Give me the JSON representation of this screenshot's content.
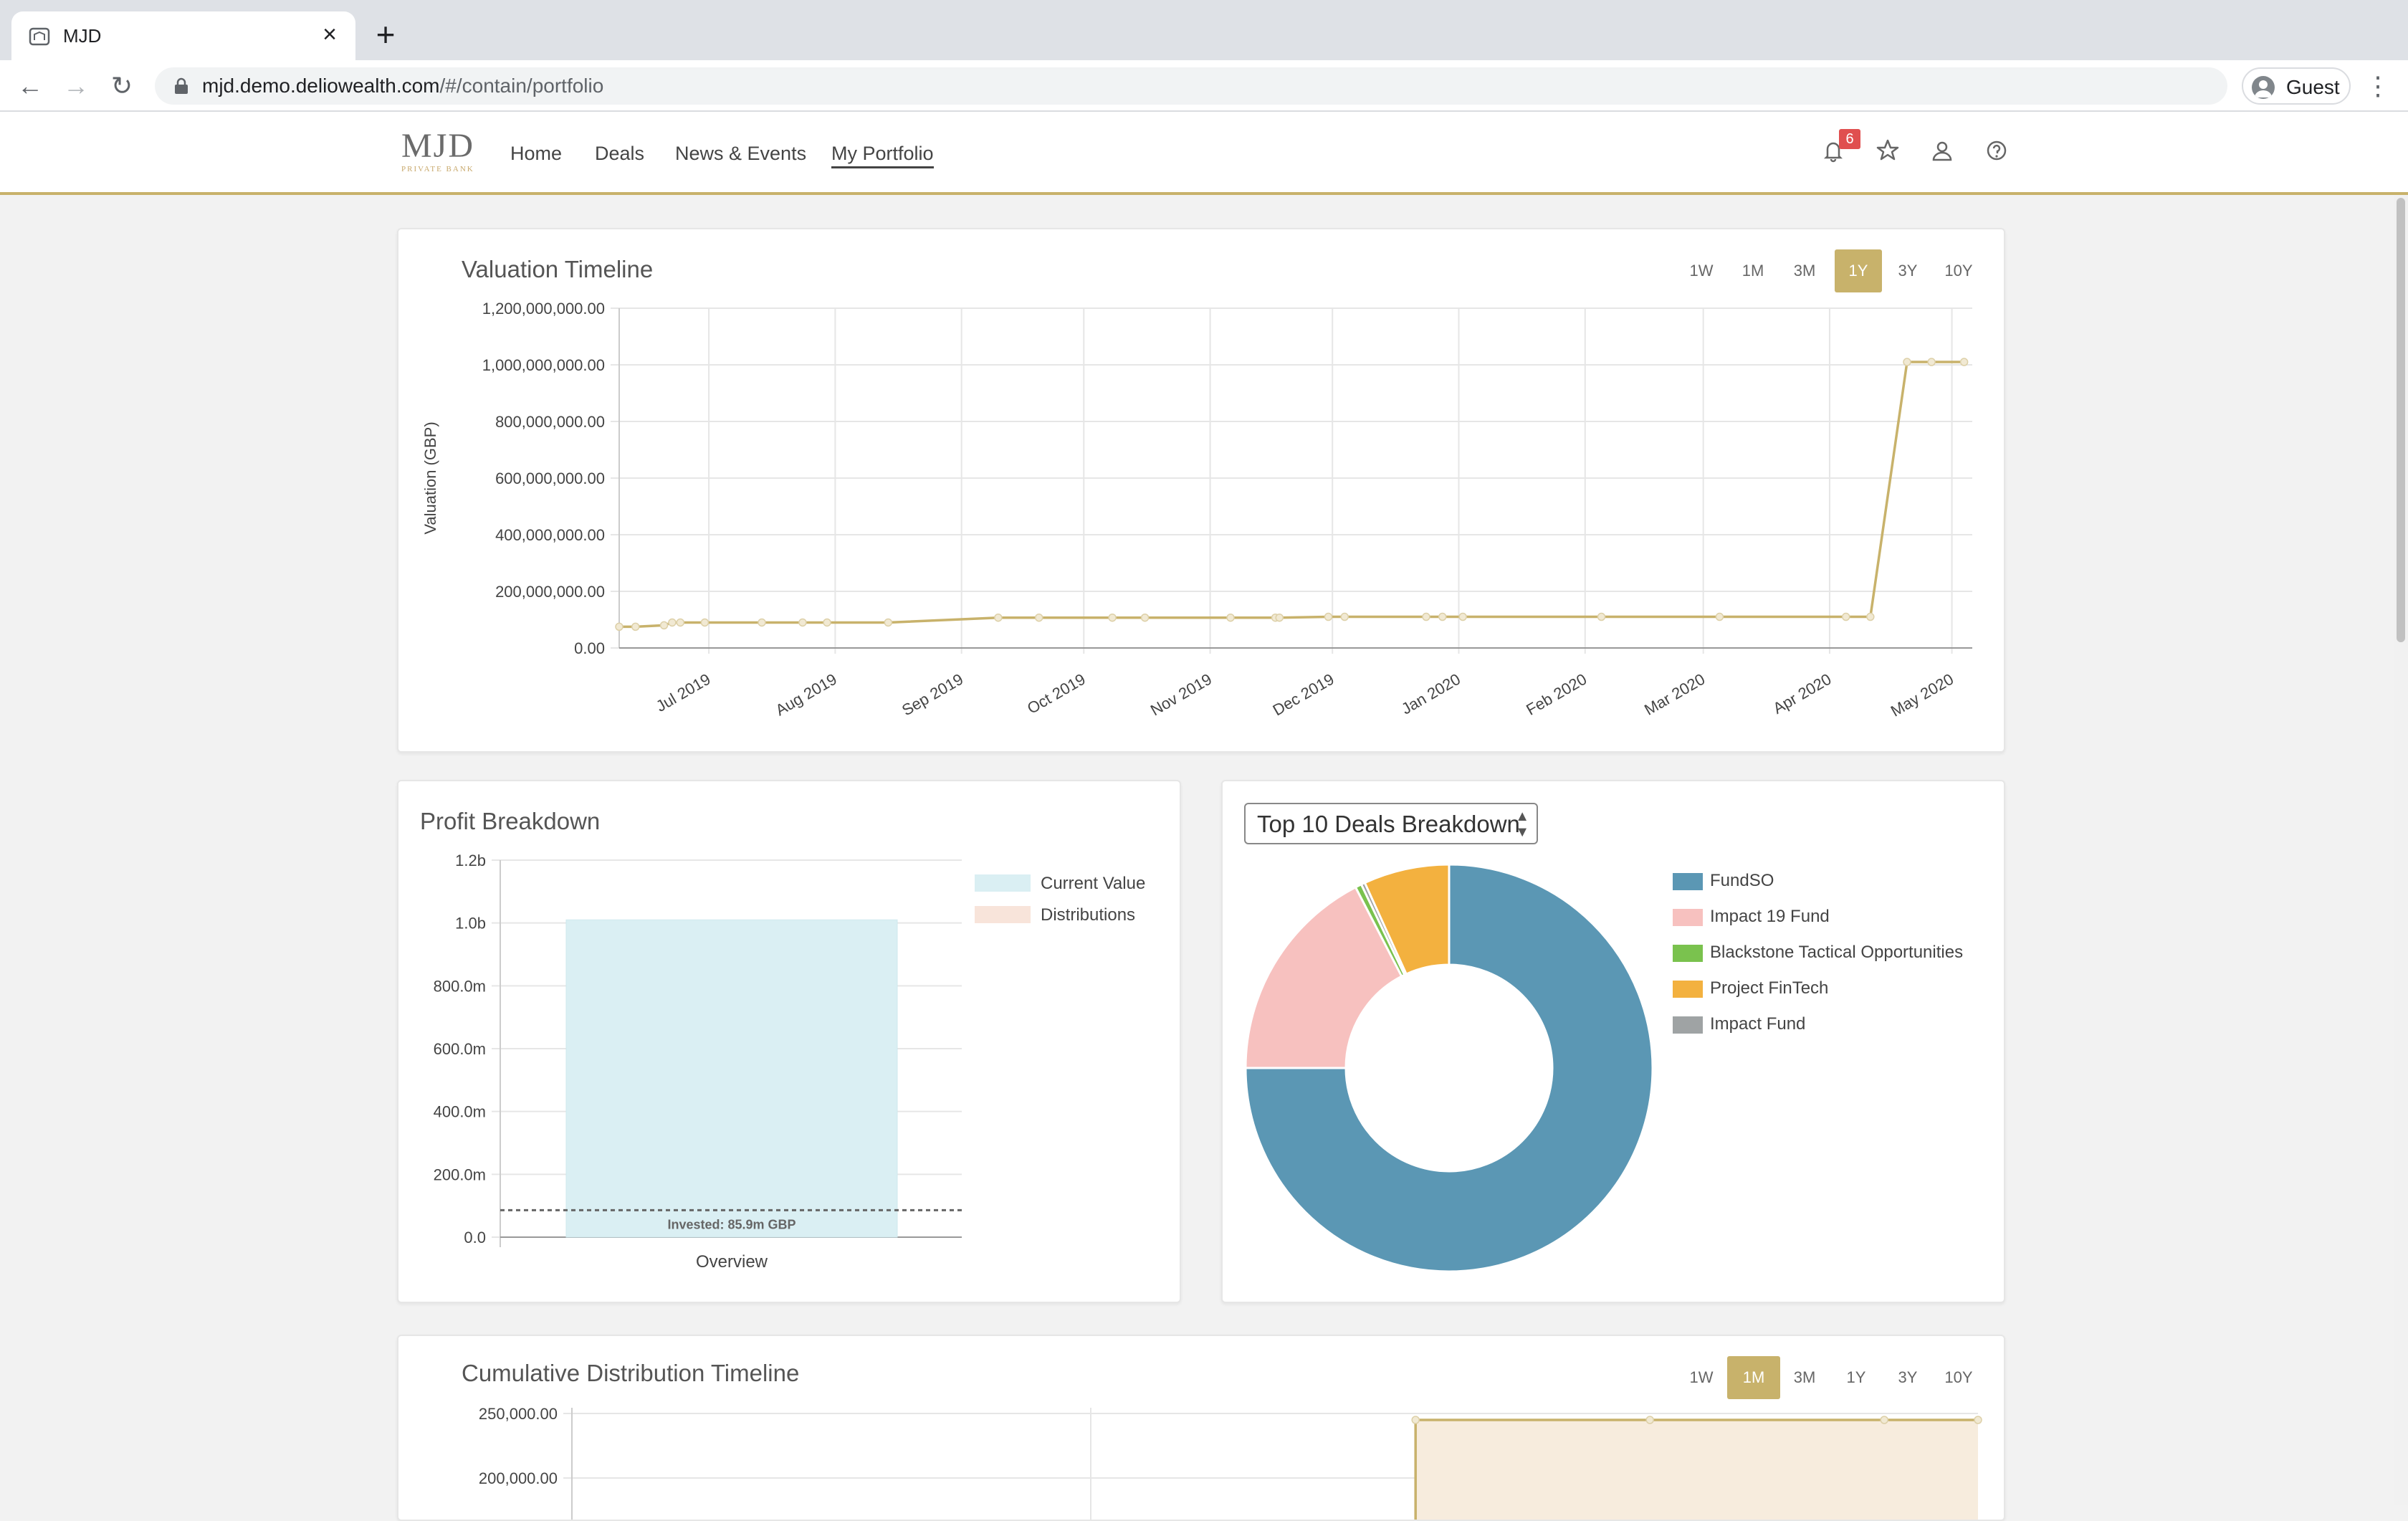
{
  "browser": {
    "tab_title": "MJD",
    "url_host": "mjd.demo.deliowealth.com",
    "url_path": "/#/contain/portfolio",
    "profile_label": "Guest"
  },
  "header": {
    "logo_main": "MJD",
    "logo_sub": "PRIVATE BANK",
    "nav": [
      "Home",
      "Deals",
      "News & Events",
      "My Portfolio"
    ],
    "active_nav": "My Portfolio",
    "notification_count": "6",
    "colors": {
      "accent": "#c8b26b",
      "badge": "#e04f4f"
    }
  },
  "valuation": {
    "title": "Valuation Timeline",
    "ranges": [
      "1W",
      "1M",
      "3M",
      "1Y",
      "3Y",
      "10Y"
    ],
    "active_range": "1Y"
  },
  "profit": {
    "title": "Profit Breakdown"
  },
  "deals": {
    "select_label": "Top 10 Deals Breakdown"
  },
  "cumulative": {
    "title": "Cumulative Distribution Timeline",
    "ranges": [
      "1W",
      "1M",
      "3M",
      "1Y",
      "3Y",
      "10Y"
    ],
    "active_range": "1M"
  },
  "chart_data": [
    {
      "type": "line",
      "title": "Valuation Timeline",
      "ylabel": "Valuation (GBP)",
      "ylim": [
        0,
        1200000000
      ],
      "y_ticks": [
        "0.00",
        "200,000,000.00",
        "400,000,000.00",
        "600,000,000.00",
        "800,000,000.00",
        "1,000,000,000.00",
        "1,200,000,000.00"
      ],
      "x_ticks": [
        "Jul 2019",
        "Aug 2019",
        "Sep 2019",
        "Oct 2019",
        "Nov 2019",
        "Dec 2019",
        "Jan 2020",
        "Feb 2020",
        "Mar 2020",
        "Apr 2020",
        "May 2020"
      ],
      "grid": true,
      "color": "#c8b26b",
      "x": [
        "2019-06-09",
        "2019-06-13",
        "2019-06-20",
        "2019-06-22",
        "2019-06-24",
        "2019-06-30",
        "2019-07-14",
        "2019-07-24",
        "2019-07-30",
        "2019-08-14",
        "2019-09-10",
        "2019-09-20",
        "2019-10-08",
        "2019-10-16",
        "2019-11-06",
        "2019-11-17",
        "2019-11-18",
        "2019-11-30",
        "2019-12-04",
        "2019-12-24",
        "2019-12-28",
        "2020-01-02",
        "2020-02-05",
        "2020-03-05",
        "2020-04-05",
        "2020-04-11",
        "2020-04-20",
        "2020-04-26",
        "2020-05-04"
      ],
      "y": [
        75000000,
        75000000,
        80000000,
        90000000,
        90000000,
        90000000,
        90000000,
        90000000,
        90000000,
        90000000,
        107000000,
        107000000,
        107000000,
        107000000,
        107000000,
        107000000,
        107000000,
        110000000,
        110000000,
        110000000,
        110000000,
        110000000,
        110000000,
        110000000,
        110000000,
        110000000,
        1010000000,
        1010000000,
        1010000000
      ]
    },
    {
      "type": "bar",
      "title": "Profit Breakdown",
      "categories": [
        "Overview"
      ],
      "series": [
        {
          "name": "Current Value",
          "values": [
            1010000000
          ],
          "color": "#daeff3"
        },
        {
          "name": "Distributions",
          "values": [
            0
          ],
          "color": "#f8e4da"
        }
      ],
      "y_ticks": [
        "0.0",
        "200.0m",
        "400.0m",
        "600.0m",
        "800.0m",
        "1.0b",
        "1.2b"
      ],
      "ylim": [
        0,
        1200000000
      ],
      "reference_line": {
        "value": 85900000,
        "label": "Invested: 85.9m GBP"
      },
      "legend": "top-right"
    },
    {
      "type": "pie",
      "title": "Top 10 Deals Breakdown",
      "labels": [
        "FundSO",
        "Impact 19 Fund",
        "Blackstone Tactical Opportunities",
        "Project FinTech",
        "Impact Fund"
      ],
      "values": [
        75,
        17.4,
        0.5,
        6.8,
        0.3
      ],
      "colors": [
        "#5b97b4",
        "#f7c1bf",
        "#7ac24e",
        "#f3b13f",
        "#9fa3a4"
      ],
      "legend": "right"
    },
    {
      "type": "area",
      "title": "Cumulative Distribution Timeline",
      "y_ticks": [
        "200,000.00",
        "250,000.00"
      ],
      "color": "#c8b26b",
      "fill": "#f7ecdd",
      "x": [
        "2020-04-26",
        "2020-05-01",
        "2020-05-06",
        "2020-05-08"
      ],
      "y": [
        245000,
        245000,
        245000,
        245000
      ]
    }
  ]
}
